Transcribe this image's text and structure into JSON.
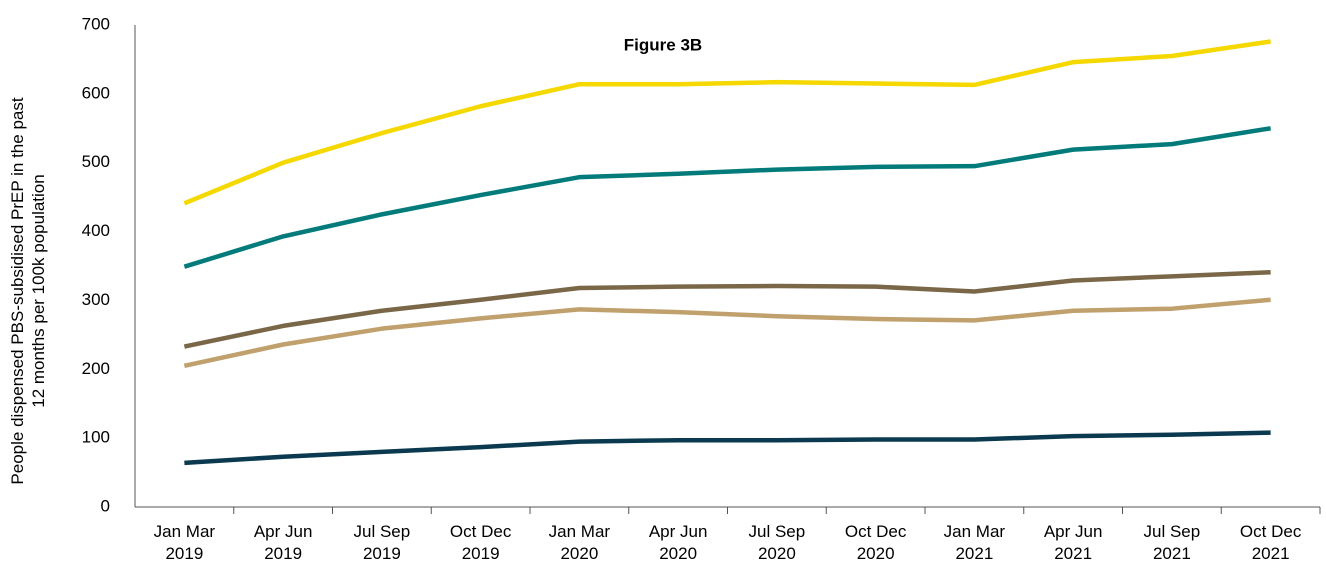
{
  "chart_data": {
    "type": "line",
    "title": "Figure 3B",
    "y_label": "People  dispensed PBS-subsidised PrEP in the past\n12 months per 100k population",
    "categories": [
      "Jan Mar\n2019",
      "Apr Jun\n2019",
      "Jul Sep\n2019",
      "Oct Dec\n2019",
      "Jan Mar\n2020",
      "Apr Jun\n2020",
      "Jul Sep\n2020",
      "Oct Dec\n2020",
      "Jan Mar\n2021",
      "Apr Jun\n2021",
      "Jul Sep\n2021",
      "Oct Dec\n2021"
    ],
    "series": [
      {
        "color": "#f5d800",
        "values": [
          441,
          500,
          543,
          582,
          614,
          614,
          617,
          615,
          613,
          646,
          655,
          676
        ]
      },
      {
        "color": "#037b7b",
        "values": [
          349,
          393,
          425,
          453,
          479,
          484,
          490,
          494,
          495,
          519,
          527,
          550
        ]
      },
      {
        "color": "#7a6748",
        "values": [
          233,
          263,
          285,
          301,
          318,
          320,
          321,
          320,
          313,
          329,
          335,
          341
        ]
      },
      {
        "color": "#c0a06c",
        "values": [
          205,
          236,
          259,
          274,
          287,
          283,
          277,
          273,
          271,
          285,
          288,
          301
        ]
      },
      {
        "color": "#0b3a50",
        "values": [
          64,
          73,
          80,
          87,
          95,
          97,
          97,
          98,
          98,
          103,
          105,
          108
        ]
      }
    ],
    "ylim": [
      0,
      700
    ],
    "yticks": [
      0,
      100,
      200,
      300,
      400,
      500,
      600,
      700
    ],
    "grid": false
  }
}
